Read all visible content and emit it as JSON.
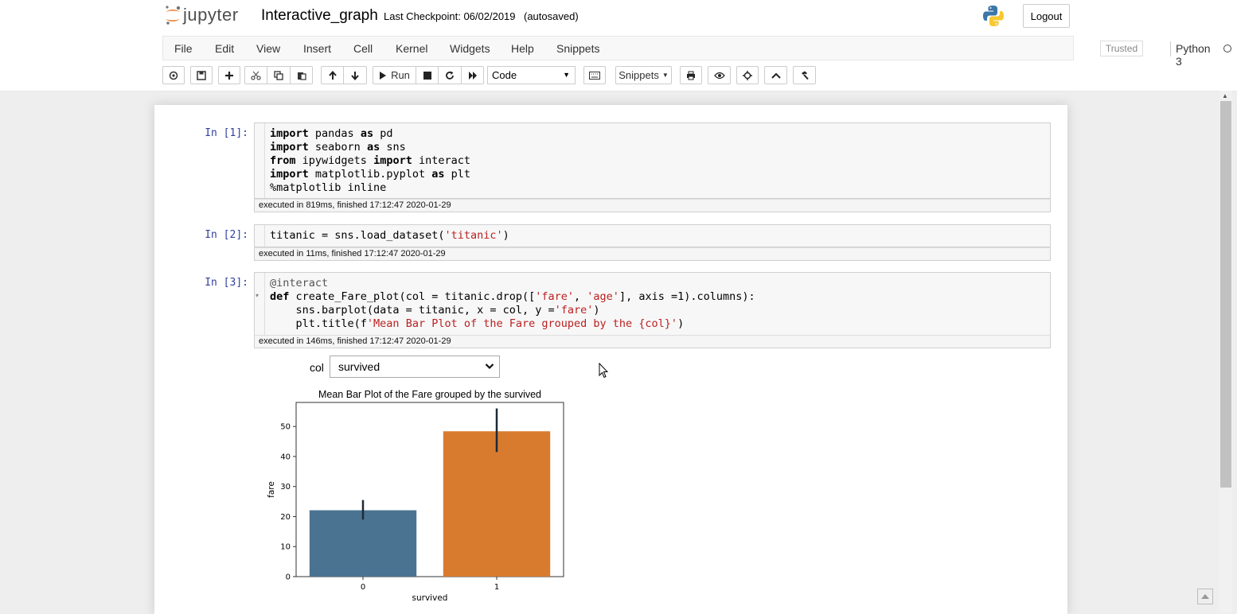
{
  "header": {
    "logo_text": "jupyter",
    "notebook_name": "Interactive_graph",
    "checkpoint": "Last Checkpoint: 06/02/2019",
    "autosave": "(autosaved)",
    "logout_label": "Logout",
    "trusted_label": "Trusted",
    "kernel_name": "Python 3"
  },
  "menu": [
    "File",
    "Edit",
    "View",
    "Insert",
    "Cell",
    "Kernel",
    "Widgets",
    "Help",
    "Snippets"
  ],
  "toolbar": {
    "run_label": "Run",
    "cell_type": "Code",
    "snippets_label": "Snippets",
    "icons": [
      "save-icon",
      "add-cell-icon",
      "cut-icon",
      "copy-icon",
      "paste-icon",
      "move-up-icon",
      "move-down-icon",
      "run-icon",
      "stop-icon",
      "restart-icon",
      "fast-forward-icon",
      "keyboard-icon",
      "print-icon",
      "eye-icon",
      "crosshair-icon",
      "chevron-up-icon",
      "hammer-icon"
    ]
  },
  "cells": [
    {
      "prompt": "In [1]:",
      "lines": [
        "import pandas as pd",
        "import seaborn as sns",
        "from ipywidgets import interact",
        "import matplotlib.pyplot as plt",
        "%matplotlib inline"
      ],
      "exec": "executed in 819ms, finished 17:12:47 2020-01-29"
    },
    {
      "prompt": "In [2]:",
      "lines": [
        "titanic = sns.load_dataset('titanic')"
      ],
      "exec": "executed in 11ms, finished 17:12:47 2020-01-29"
    },
    {
      "prompt": "In [3]:",
      "lines": [
        "@interact",
        "def create_Fare_plot(col = titanic.drop(['fare', 'age'], axis =1).columns):",
        "    sns.barplot(data = titanic, x = col, y ='fare')",
        "    plt.title(f'Mean Bar Plot of the Fare grouped by the {col}')"
      ],
      "exec": "executed in 146ms, finished 17:12:47 2020-01-29"
    }
  ],
  "widget": {
    "label": "col",
    "selected": "survived"
  },
  "chart_data": {
    "type": "bar",
    "title": "Mean Bar Plot of the Fare grouped by the survived",
    "xlabel": "survived",
    "ylabel": "fare",
    "categories": [
      "0",
      "1"
    ],
    "values": [
      22.1,
      48.4
    ],
    "error_low": [
      19.0,
      41.5
    ],
    "error_high": [
      25.5,
      56.0
    ],
    "colors": [
      "#4a7391",
      "#d97b2e"
    ],
    "ylim": [
      0,
      58
    ],
    "yticks": [
      0,
      10,
      20,
      30,
      40,
      50
    ]
  }
}
